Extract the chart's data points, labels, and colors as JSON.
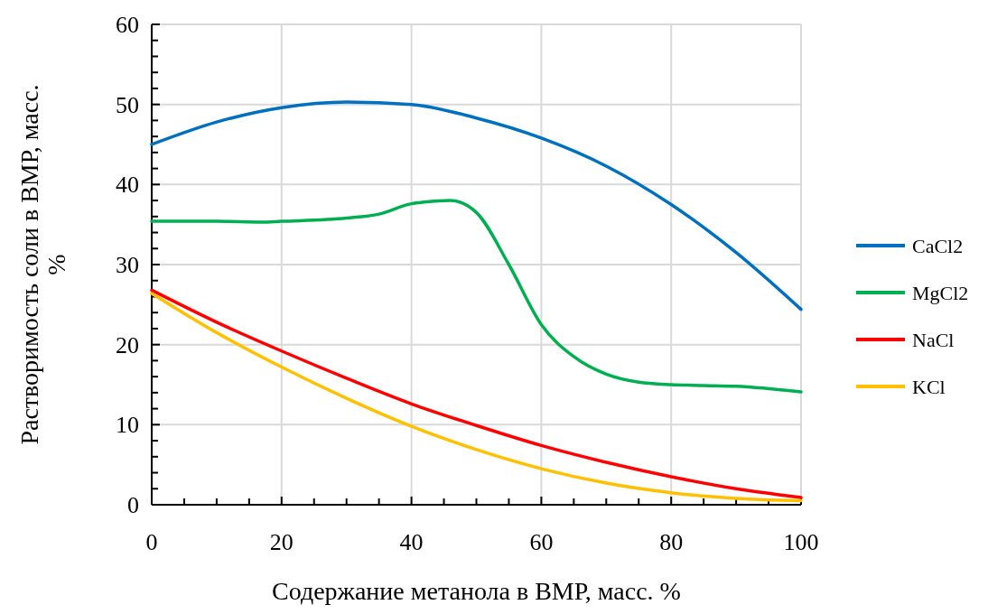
{
  "chart_data": {
    "type": "line",
    "xlabel": "Содержание метанола в ВМР, масс. %",
    "ylabel": "Растворимость соли в ВМР, масс. %",
    "xlim": [
      0,
      100
    ],
    "ylim": [
      0,
      60
    ],
    "xticks": [
      0,
      {
        "value": 5,
        "label": null
      },
      {
        "value": 10,
        "label": null
      },
      {
        "value": 15,
        "label": null
      },
      20,
      {
        "value": 25,
        "label": null
      },
      {
        "value": 30,
        "label": null
      },
      {
        "value": 35,
        "label": null
      },
      40,
      {
        "value": 45,
        "label": null
      },
      {
        "value": 50,
        "label": null
      },
      {
        "value": 55,
        "label": null
      },
      60,
      {
        "value": 65,
        "label": null
      },
      {
        "value": 70,
        "label": null
      },
      {
        "value": 75,
        "label": null
      },
      80,
      {
        "value": 85,
        "label": null
      },
      {
        "value": 90,
        "label": null
      },
      {
        "value": 95,
        "label": null
      },
      100
    ],
    "yticks": [
      0,
      {
        "value": 2,
        "label": null
      },
      {
        "value": 4,
        "label": null
      },
      {
        "value": 6,
        "label": null
      },
      {
        "value": 8,
        "label": null
      },
      10,
      {
        "value": 12,
        "label": null
      },
      {
        "value": 14,
        "label": null
      },
      {
        "value": 16,
        "label": null
      },
      {
        "value": 18,
        "label": null
      },
      20,
      {
        "value": 22,
        "label": null
      },
      {
        "value": 24,
        "label": null
      },
      {
        "value": 26,
        "label": null
      },
      {
        "value": 28,
        "label": null
      },
      30,
      {
        "value": 32,
        "label": null
      },
      {
        "value": 34,
        "label": null
      },
      {
        "value": 36,
        "label": null
      },
      {
        "value": 38,
        "label": null
      },
      40,
      {
        "value": 42,
        "label": null
      },
      {
        "value": 44,
        "label": null
      },
      {
        "value": 46,
        "label": null
      },
      {
        "value": 48,
        "label": null
      },
      50,
      {
        "value": 52,
        "label": null
      },
      {
        "value": 54,
        "label": null
      },
      {
        "value": 56,
        "label": null
      },
      {
        "value": 58,
        "label": null
      },
      60
    ],
    "grid": true,
    "legend": "right",
    "marker": "none",
    "line_style": "solid",
    "series": [
      {
        "name": "CaCl2",
        "color": "#0070c0",
        "x": [
          0,
          10,
          20,
          30,
          40,
          50,
          60,
          70,
          80,
          90,
          100
        ],
        "values": [
          45,
          47.8,
          49.6,
          50.3,
          50.0,
          48.3,
          45.8,
          42.3,
          37.5,
          31.5,
          24.4
        ]
      },
      {
        "name": "MgCl2",
        "color": "#00b050",
        "x": [
          0,
          10,
          17,
          20,
          30,
          35,
          40,
          42,
          46,
          50,
          55,
          60,
          65,
          70,
          75,
          80,
          85,
          90,
          100
        ],
        "values": [
          35.4,
          35.4,
          35.3,
          35.4,
          35.8,
          36.3,
          37.6,
          37.8,
          38.0,
          36.5,
          30,
          22.5,
          18.5,
          16.3,
          15.3,
          15.0,
          14.9,
          14.8,
          14.1
        ]
      },
      {
        "name": "NaCl",
        "color": "#ff0000",
        "x": [
          0,
          10,
          20,
          30,
          40,
          50,
          60,
          70,
          80,
          90,
          100
        ],
        "values": [
          26.8,
          22.8,
          19.2,
          15.8,
          12.6,
          9.9,
          7.4,
          5.3,
          3.5,
          2.0,
          0.9
        ]
      },
      {
        "name": "KCl",
        "color": "#ffc000",
        "x": [
          0,
          10,
          20,
          30,
          40,
          50,
          60,
          70,
          80,
          90,
          100
        ],
        "values": [
          26.4,
          21.5,
          17.2,
          13.3,
          9.8,
          6.9,
          4.5,
          2.7,
          1.5,
          0.8,
          0.5
        ]
      }
    ]
  }
}
